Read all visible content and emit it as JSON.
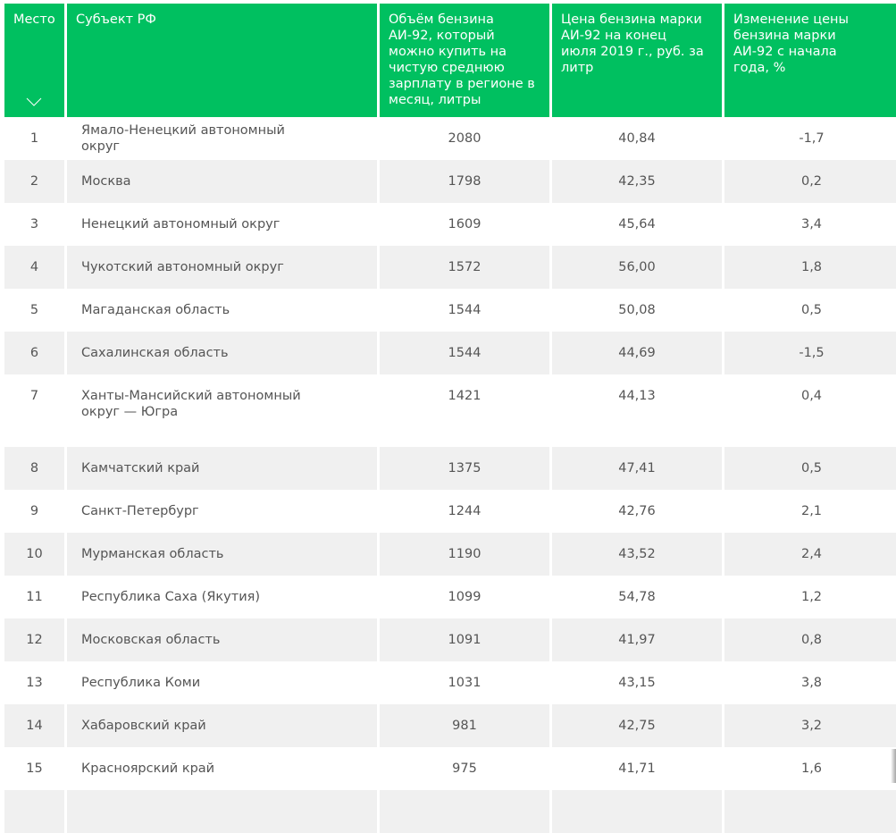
{
  "header_color": "#00c060",
  "columns": [
    "Место",
    "Субъект РФ",
    "Объём бензина АИ-92, который можно купить на чистую среднюю зарплату в регионе в месяц, литры",
    "Цена бензина марки АИ-92 на конец июля 2019 г., руб. за литр",
    "Изменение цены бензина марки АИ-92 с начала года, %"
  ],
  "sort_icon": "chevron-down-icon",
  "rows": [
    {
      "rank": "1",
      "region": "Ямало-Ненецкий автономный округ",
      "volume": "2080",
      "price": "40,84",
      "change": "-1,7"
    },
    {
      "rank": "2",
      "region": "Москва",
      "volume": "1798",
      "price": "42,35",
      "change": "0,2"
    },
    {
      "rank": "3",
      "region": "Ненецкий автономный округ",
      "volume": "1609",
      "price": "45,64",
      "change": "3,4"
    },
    {
      "rank": "4",
      "region": "Чукотский автономный округ",
      "volume": "1572",
      "price": "56,00",
      "change": "1,8"
    },
    {
      "rank": "5",
      "region": "Магаданская область",
      "volume": "1544",
      "price": "50,08",
      "change": "0,5"
    },
    {
      "rank": "6",
      "region": "Сахалинская область",
      "volume": "1544",
      "price": "44,69",
      "change": "-1,5"
    },
    {
      "rank": "7",
      "region": "Ханты-Мансийский автономный округ — Югра",
      "volume": "1421",
      "price": "44,13",
      "change": "0,4"
    },
    {
      "rank": "8",
      "region": "Камчатский край",
      "volume": "1375",
      "price": "47,41",
      "change": "0,5"
    },
    {
      "rank": "9",
      "region": "Санкт-Петербург",
      "volume": "1244",
      "price": "42,76",
      "change": "2,1"
    },
    {
      "rank": "10",
      "region": "Мурманская область",
      "volume": "1190",
      "price": "43,52",
      "change": "2,4"
    },
    {
      "rank": "11",
      "region": "Республика Саха (Якутия)",
      "volume": "1099",
      "price": "54,78",
      "change": "1,2"
    },
    {
      "rank": "12",
      "region": "Московская область",
      "volume": "1091",
      "price": "41,97",
      "change": "0,8"
    },
    {
      "rank": "13",
      "region": "Республика Коми",
      "volume": "1031",
      "price": "43,15",
      "change": "3,8"
    },
    {
      "rank": "14",
      "region": "Хабаровский край",
      "volume": "981",
      "price": "42,75",
      "change": "3,2"
    },
    {
      "rank": "15",
      "region": "Красноярский край",
      "volume": "975",
      "price": "41,71",
      "change": "1,6"
    }
  ]
}
